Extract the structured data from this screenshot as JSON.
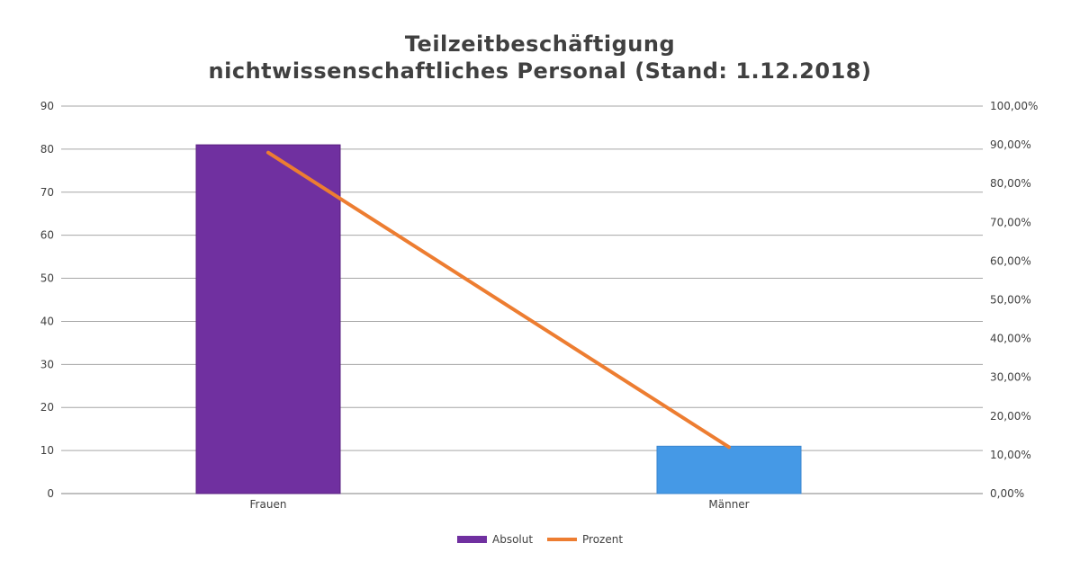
{
  "chart_data": {
    "type": "bar",
    "title": [
      "Teilzeitbeschäftigung",
      "nichtwissenschaftliches Personal (Stand: 1.12.2018)"
    ],
    "categories": [
      "Frauen",
      "Männer"
    ],
    "series": [
      {
        "name": "Absolut",
        "type": "bar",
        "axis": "left",
        "values": [
          81,
          11
        ],
        "colors": [
          "#7030a0",
          "#4599e6"
        ]
      },
      {
        "name": "Prozent",
        "type": "line",
        "axis": "right",
        "values": [
          0.88,
          0.12
        ],
        "color": "#ed7d31"
      }
    ],
    "y_left": {
      "min": 0,
      "max": 90,
      "step": 10,
      "tick_labels": [
        "0",
        "10",
        "20",
        "30",
        "40",
        "50",
        "60",
        "70",
        "80",
        "90"
      ]
    },
    "y_right": {
      "min": 0,
      "max": 1,
      "step": 0.1,
      "tick_labels": [
        "0,00%",
        "10,00%",
        "20,00%",
        "30,00%",
        "40,00%",
        "50,00%",
        "60,00%",
        "70,00%",
        "80,00%",
        "90,00%",
        "100,00%"
      ]
    },
    "grid": true,
    "legend": {
      "position": "bottom",
      "items": [
        {
          "label": "Absolut",
          "symbol": "box",
          "color": "#7030a0"
        },
        {
          "label": "Prozent",
          "symbol": "line",
          "color": "#ed7d31"
        }
      ]
    }
  }
}
